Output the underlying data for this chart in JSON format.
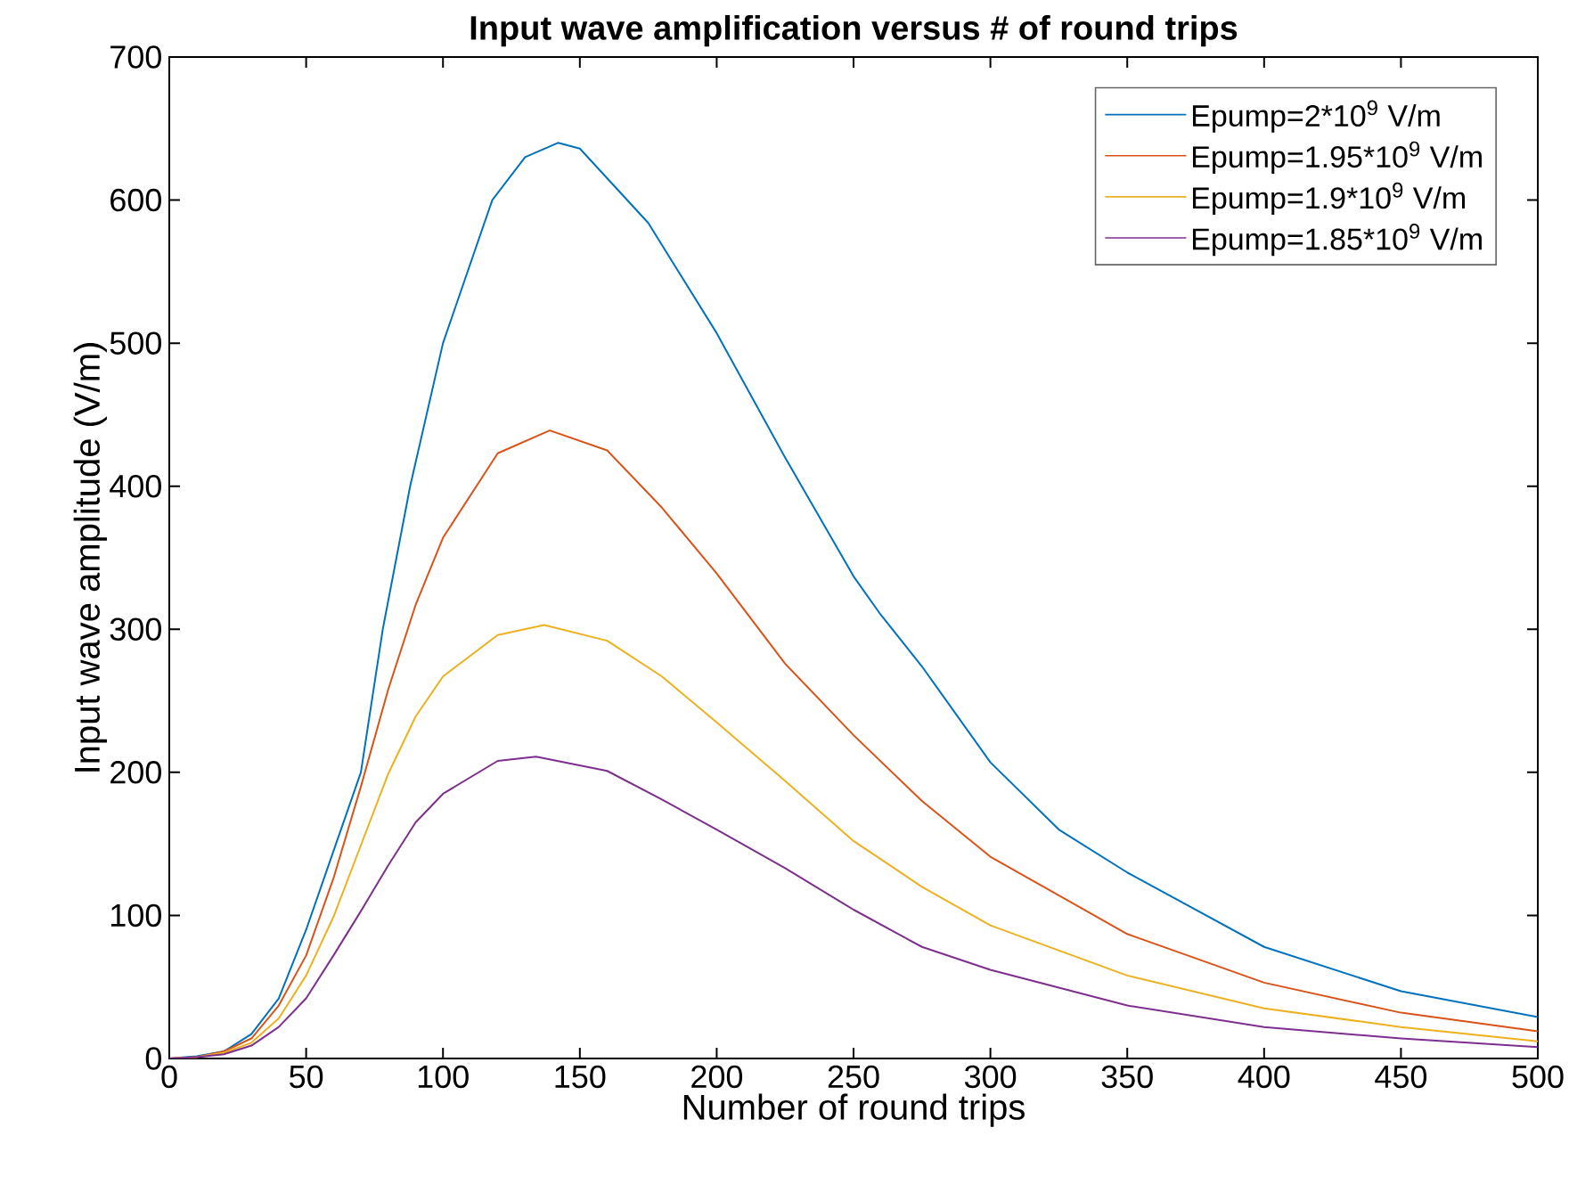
{
  "chart_data": {
    "type": "line",
    "title": "Input wave amplification versus # of round trips",
    "xlabel": "Number of round trips",
    "ylabel": "Input wave amplitude (V/m)",
    "xlim": [
      0,
      500
    ],
    "ylim": [
      0,
      700
    ],
    "xticks": [
      0,
      50,
      100,
      150,
      200,
      250,
      300,
      350,
      400,
      450,
      500
    ],
    "yticks": [
      0,
      100,
      200,
      300,
      400,
      500,
      600,
      700
    ],
    "legend": "top right",
    "grid": false,
    "marker": "none",
    "line_style": "solid",
    "series": [
      {
        "name": "Epump=2*10$^{9}$ V/m",
        "color": "#0072bd",
        "x": [
          0,
          10,
          20,
          30,
          40,
          50,
          60,
          70,
          78,
          88,
          100,
          118,
          130,
          142,
          150,
          175,
          200,
          225,
          250,
          260,
          275,
          300,
          325,
          350,
          400,
          450,
          500
        ],
        "values": [
          0,
          1.5,
          5,
          17,
          42,
          90,
          145,
          200,
          300,
          400,
          500,
          600,
          630,
          640,
          636,
          584,
          507,
          420,
          337,
          310,
          274,
          207,
          160,
          130,
          78,
          47,
          29
        ]
      },
      {
        "name": "Epump=1.95*10$^{9}$ V/m",
        "color": "#d95319",
        "x": [
          0,
          10,
          20,
          30,
          40,
          50,
          60,
          70,
          80,
          90,
          100,
          120,
          139,
          160,
          180,
          200,
          225,
          250,
          275,
          300,
          350,
          400,
          450,
          500
        ],
        "values": [
          0,
          1,
          5,
          14,
          37,
          72,
          126,
          190,
          258,
          317,
          364,
          423,
          439,
          425,
          385,
          339,
          276,
          226,
          180,
          141,
          87,
          53,
          32,
          19
        ]
      },
      {
        "name": "Epump=1.9*10$^{9}$ V/m",
        "color": "#edb120",
        "x": [
          0,
          10,
          20,
          30,
          40,
          50,
          60,
          70,
          80,
          90,
          100,
          120,
          137,
          160,
          180,
          200,
          225,
          250,
          275,
          300,
          350,
          400,
          450,
          500
        ],
        "values": [
          0,
          1,
          4,
          11,
          28,
          58,
          99,
          149,
          199,
          239,
          267,
          296,
          303,
          292,
          267,
          235,
          194,
          152,
          120,
          93,
          58,
          35,
          22,
          12
        ]
      },
      {
        "name": "Epump=1.85*10$^{9}$ V/m",
        "color": "#7e2f8e",
        "x": [
          0,
          10,
          20,
          30,
          40,
          50,
          60,
          70,
          80,
          90,
          100,
          120,
          134,
          160,
          180,
          200,
          225,
          250,
          275,
          300,
          350,
          400,
          450,
          500
        ],
        "values": [
          0,
          1,
          3,
          9,
          22,
          42,
          72,
          103,
          135,
          165,
          185,
          208,
          211,
          201,
          181,
          160,
          133,
          104,
          78,
          62,
          37,
          22,
          14,
          8
        ]
      }
    ]
  }
}
